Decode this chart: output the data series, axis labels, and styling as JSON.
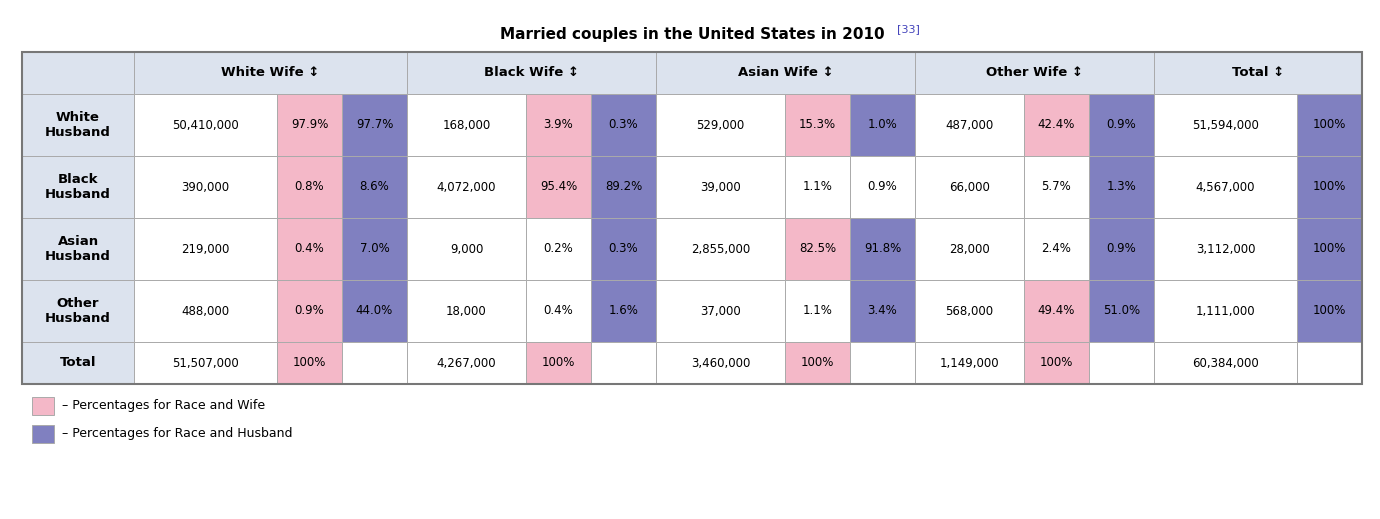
{
  "title": "Married couples in the United States in 2010",
  "title_superscript": "[33]",
  "sort_arrow": "↕",
  "header_bg": "#dce3ee",
  "pink": "#f4b8c8",
  "blue": "#8080c0",
  "white": "#ffffff",
  "border_color": "#aaaaaa",
  "border_color_outer": "#777777",
  "cell_data": [
    {
      "label": "White\nHusband",
      "white_wife": {
        "count": "50,410,000",
        "pct_wife": "97.9%",
        "pct_husb": "97.7%",
        "wife_bg": "pink",
        "husb_bg": "blue"
      },
      "black_wife": {
        "count": "168,000",
        "pct_wife": "3.9%",
        "pct_husb": "0.3%",
        "wife_bg": "pink",
        "husb_bg": "blue"
      },
      "asian_wife": {
        "count": "529,000",
        "pct_wife": "15.3%",
        "pct_husb": "1.0%",
        "wife_bg": "pink",
        "husb_bg": "blue"
      },
      "other_wife": {
        "count": "487,000",
        "pct_wife": "42.4%",
        "pct_husb": "0.9%",
        "wife_bg": "pink",
        "husb_bg": "blue"
      },
      "total_count": "51,594,000",
      "total_pct": "100%",
      "total_bg": "blue"
    },
    {
      "label": "Black\nHusband",
      "white_wife": {
        "count": "390,000",
        "pct_wife": "0.8%",
        "pct_husb": "8.6%",
        "wife_bg": "pink",
        "husb_bg": "blue"
      },
      "black_wife": {
        "count": "4,072,000",
        "pct_wife": "95.4%",
        "pct_husb": "89.2%",
        "wife_bg": "pink",
        "husb_bg": "blue"
      },
      "asian_wife": {
        "count": "39,000",
        "pct_wife": "1.1%",
        "pct_husb": "0.9%",
        "wife_bg": "white",
        "husb_bg": "white"
      },
      "other_wife": {
        "count": "66,000",
        "pct_wife": "5.7%",
        "pct_husb": "1.3%",
        "wife_bg": "white",
        "husb_bg": "blue"
      },
      "total_count": "4,567,000",
      "total_pct": "100%",
      "total_bg": "blue"
    },
    {
      "label": "Asian\nHusband",
      "white_wife": {
        "count": "219,000",
        "pct_wife": "0.4%",
        "pct_husb": "7.0%",
        "wife_bg": "pink",
        "husb_bg": "blue"
      },
      "black_wife": {
        "count": "9,000",
        "pct_wife": "0.2%",
        "pct_husb": "0.3%",
        "wife_bg": "white",
        "husb_bg": "blue"
      },
      "asian_wife": {
        "count": "2,855,000",
        "pct_wife": "82.5%",
        "pct_husb": "91.8%",
        "wife_bg": "pink",
        "husb_bg": "blue"
      },
      "other_wife": {
        "count": "28,000",
        "pct_wife": "2.4%",
        "pct_husb": "0.9%",
        "wife_bg": "white",
        "husb_bg": "blue"
      },
      "total_count": "3,112,000",
      "total_pct": "100%",
      "total_bg": "blue"
    },
    {
      "label": "Other\nHusband",
      "white_wife": {
        "count": "488,000",
        "pct_wife": "0.9%",
        "pct_husb": "44.0%",
        "wife_bg": "pink",
        "husb_bg": "blue"
      },
      "black_wife": {
        "count": "18,000",
        "pct_wife": "0.4%",
        "pct_husb": "1.6%",
        "wife_bg": "white",
        "husb_bg": "blue"
      },
      "asian_wife": {
        "count": "37,000",
        "pct_wife": "1.1%",
        "pct_husb": "3.4%",
        "wife_bg": "white",
        "husb_bg": "blue"
      },
      "other_wife": {
        "count": "568,000",
        "pct_wife": "49.4%",
        "pct_husb": "51.0%",
        "wife_bg": "pink",
        "husb_bg": "blue"
      },
      "total_count": "1,111,000",
      "total_pct": "100%",
      "total_bg": "blue"
    }
  ],
  "total_row": {
    "white_count": "51,507,000",
    "white_pct": "100%",
    "black_count": "4,267,000",
    "black_pct": "100%",
    "asian_count": "3,460,000",
    "asian_pct": "100%",
    "other_count": "1,149,000",
    "other_pct": "100%",
    "grand_total": "60,384,000"
  },
  "legend": [
    {
      "color": "pink",
      "text": "– Percentages for Race and Wife"
    },
    {
      "color": "blue",
      "text": "– Percentages for Race and Husband"
    }
  ]
}
